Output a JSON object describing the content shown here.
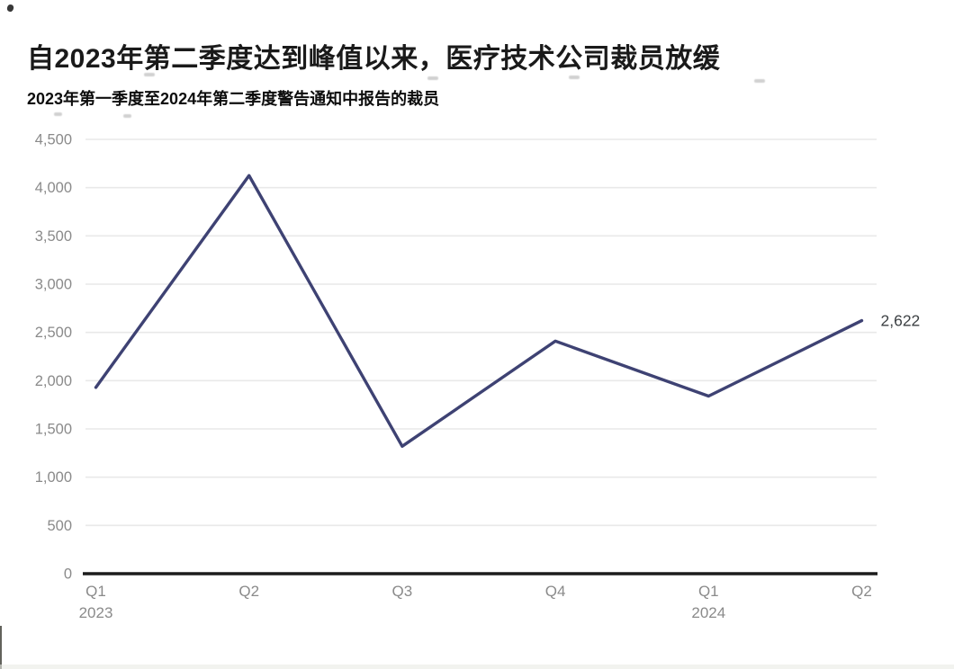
{
  "chart_data": {
    "type": "line",
    "title": "自2023年第二季度达到峰值以来，医疗技术公司裁员放缓",
    "subtitle": "2023年第一季度至2024年第二季度警告通知中报告的裁员",
    "categories": [
      "Q1",
      "Q2",
      "Q3",
      "Q4",
      "Q1",
      "Q2"
    ],
    "category_years": [
      "2023",
      "",
      "",
      "",
      "2024",
      ""
    ],
    "values": [
      1930,
      4125,
      1320,
      2410,
      1840,
      2622
    ],
    "end_label": "2,622",
    "xlabel": "",
    "ylabel": "",
    "ylim": [
      0,
      4500
    ],
    "y_tick_step": 500,
    "grid": true,
    "legend": false,
    "colors": {
      "line": "#3e4273",
      "gridline": "#e9e9e9",
      "axis": "#1c1c1c",
      "tick_label": "#8a8a8a",
      "end_label": "#3c4043"
    }
  }
}
